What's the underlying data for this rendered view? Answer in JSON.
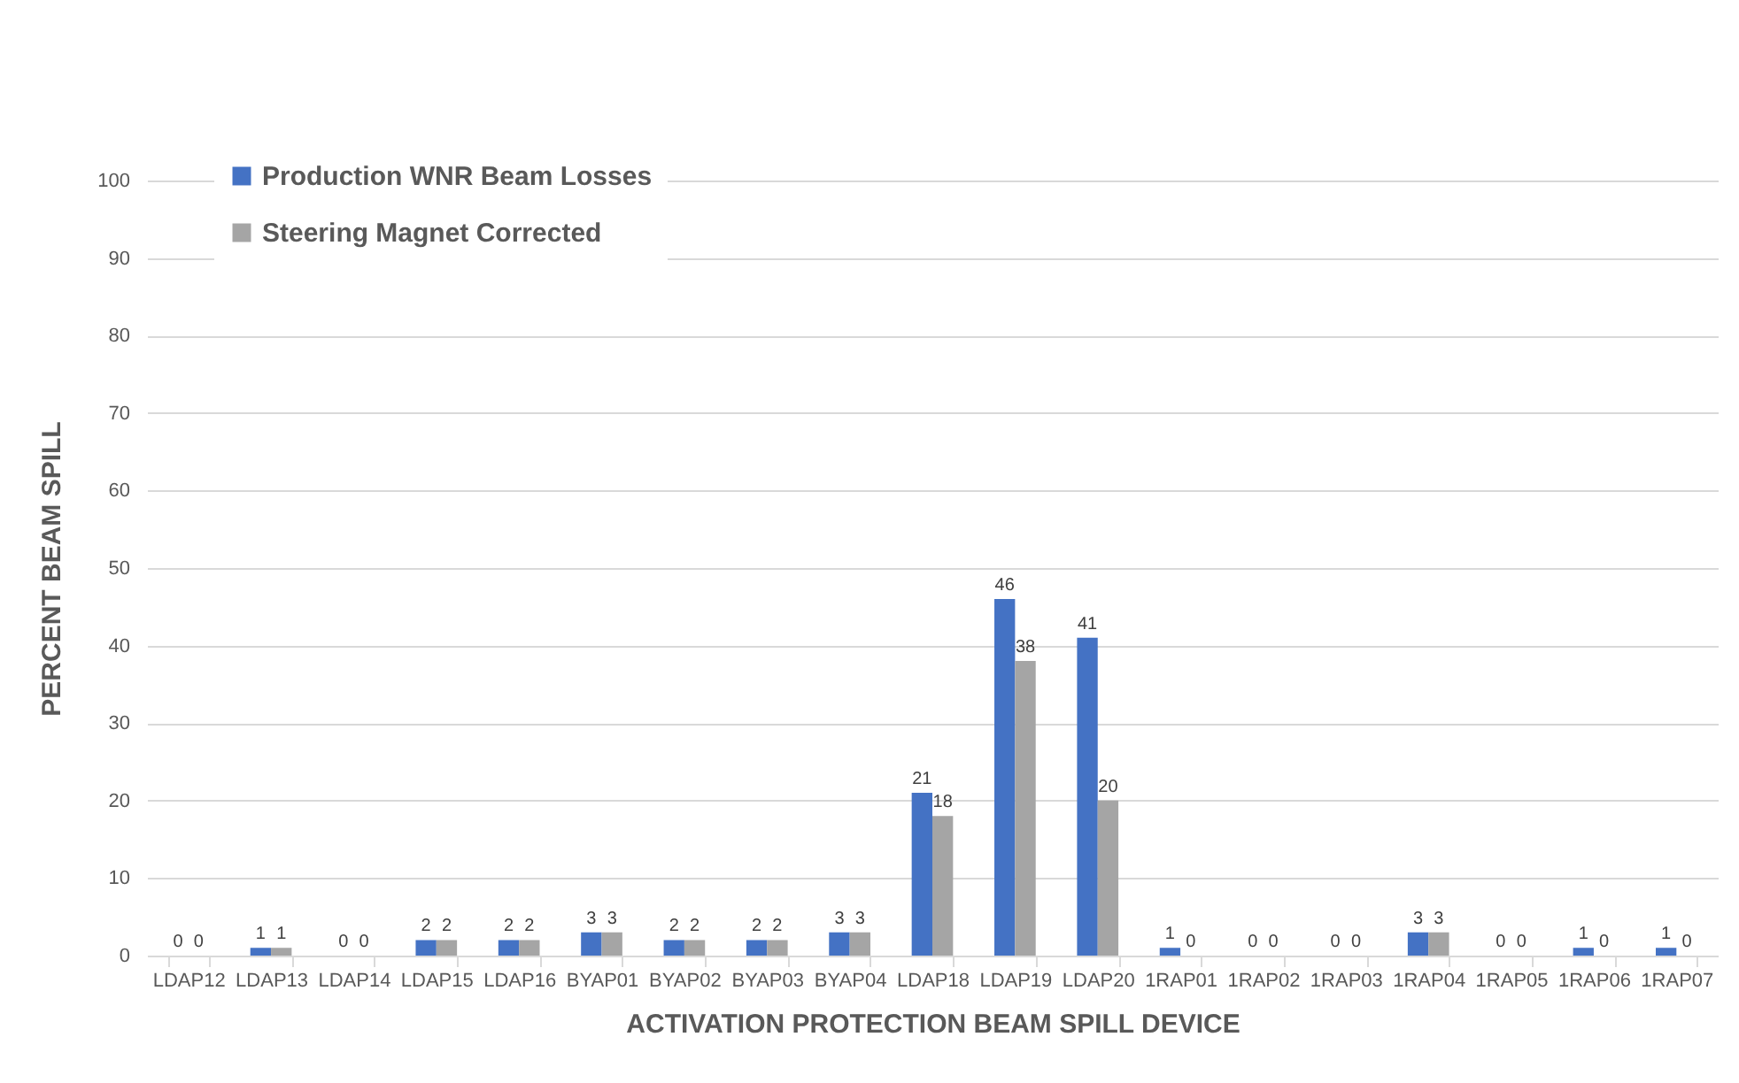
{
  "chart_data": {
    "type": "bar",
    "xlabel": "ACTIVATION PROTECTION BEAM SPILL DEVICE",
    "ylabel": "PERCENT BEAM SPILL",
    "categories": [
      "LDAP12",
      "LDAP13",
      "LDAP14",
      "LDAP15",
      "LDAP16",
      "BYAP01",
      "BYAP02",
      "BYAP03",
      "BYAP04",
      "LDAP18",
      "LDAP19",
      "LDAP20",
      "1RAP01",
      "1RAP02",
      "1RAP03",
      "1RAP04",
      "1RAP05",
      "1RAP06",
      "1RAP07"
    ],
    "series": [
      {
        "name": "Production WNR Beam Losses",
        "color": "#4472c4",
        "values": [
          0,
          1,
          0,
          2,
          2,
          3,
          2,
          2,
          3,
          21,
          46,
          41,
          1,
          0,
          0,
          3,
          0,
          1,
          1
        ]
      },
      {
        "name": "Steering Magnet Corrected",
        "color": "#a5a5a5",
        "values": [
          0,
          1,
          0,
          2,
          2,
          3,
          2,
          2,
          3,
          18,
          38,
          20,
          0,
          0,
          0,
          3,
          0,
          0,
          0
        ]
      }
    ],
    "ylim": [
      0,
      100
    ],
    "yticks": [
      0,
      10,
      20,
      30,
      40,
      50,
      60,
      70,
      80,
      90,
      100
    ],
    "grid": "y",
    "legend": "top left",
    "data_labels": true
  }
}
